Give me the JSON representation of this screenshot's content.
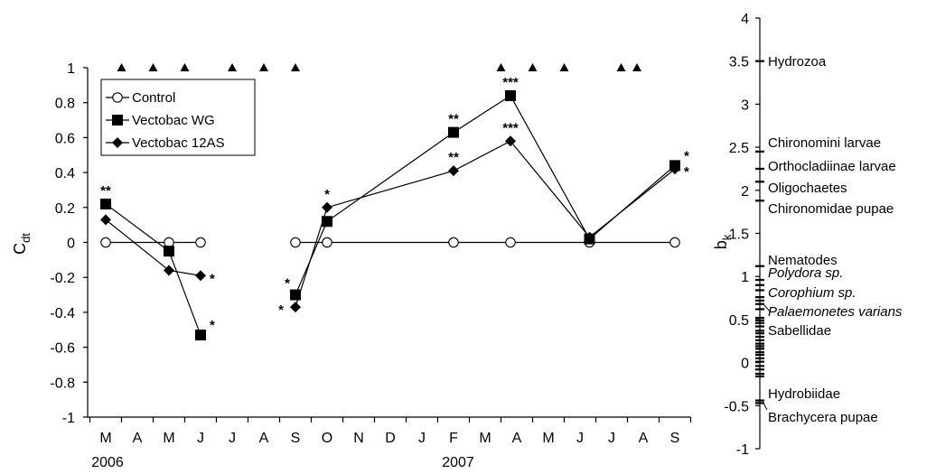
{
  "chart_data": [
    {
      "type": "line",
      "title": "",
      "ylabel": "C",
      "ylabel_sub": "dt",
      "ylim": [
        -1,
        1
      ],
      "y_ticks": [
        "1",
        "0.8",
        "0.6",
        "0.4",
        "0.2",
        "0",
        "-0.2",
        "-0.4",
        "-0.6",
        "-0.8",
        "-1"
      ],
      "month_labels": [
        "M",
        "A",
        "M",
        "J",
        "J",
        "A",
        "S",
        "O",
        "N",
        "D",
        "J",
        "F",
        "M",
        "A",
        "M",
        "J",
        "J",
        "A",
        "S"
      ],
      "year_labels": [
        "2006",
        "2007"
      ],
      "legend_position": "top-left",
      "series": [
        {
          "name": "Control",
          "marker": "circle-open",
          "segments": [
            [
              {
                "x": 0,
                "y": 0
              },
              {
                "x": 2,
                "y": 0
              },
              {
                "x": 3,
                "y": 0
              }
            ],
            [
              {
                "x": 6,
                "y": 0
              },
              {
                "x": 7,
                "y": 0
              },
              {
                "x": 11,
                "y": 0
              },
              {
                "x": 12.8,
                "y": 0
              },
              {
                "x": 15.3,
                "y": 0
              },
              {
                "x": 18,
                "y": 0
              }
            ]
          ]
        },
        {
          "name": "Vectobac WG",
          "marker": "square",
          "segments": [
            [
              {
                "x": 0,
                "y": 0.22,
                "sig": "**"
              },
              {
                "x": 2,
                "y": -0.05
              },
              {
                "x": 3,
                "y": -0.53,
                "sig": "*"
              }
            ],
            [
              {
                "x": 6,
                "y": -0.3,
                "sig": "*"
              },
              {
                "x": 7,
                "y": 0.12
              },
              {
                "x": 11,
                "y": 0.63,
                "sig": "**"
              },
              {
                "x": 12.8,
                "y": 0.84,
                "sig": "***"
              },
              {
                "x": 15.3,
                "y": 0.02
              },
              {
                "x": 18,
                "y": 0.44,
                "sig": "*"
              }
            ]
          ]
        },
        {
          "name": "Vectobac 12AS",
          "marker": "diamond",
          "segments": [
            [
              {
                "x": 0,
                "y": 0.13
              },
              {
                "x": 2,
                "y": -0.16
              },
              {
                "x": 3,
                "y": -0.19,
                "sig": "*"
              }
            ],
            [
              {
                "x": 6,
                "y": -0.37,
                "sig": "*"
              },
              {
                "x": 7,
                "y": 0.2,
                "sig": "*"
              },
              {
                "x": 11,
                "y": 0.41,
                "sig": "**"
              },
              {
                "x": 12.8,
                "y": 0.58,
                "sig": "***"
              },
              {
                "x": 15.3,
                "y": 0.03
              },
              {
                "x": 18,
                "y": 0.42,
                "sig": "*"
              }
            ]
          ]
        }
      ],
      "application_markers_x": [
        0.5,
        1.5,
        2.5,
        4,
        5,
        6,
        12.5,
        13.5,
        14.5,
        16.3,
        16.8
      ]
    },
    {
      "type": "scatter",
      "title": "",
      "ylabel": "b",
      "ylabel_sub": "k",
      "ylim": [
        -1,
        4
      ],
      "y_ticks": [
        "4",
        "3.5",
        "3",
        "2.5",
        "2",
        "1.5",
        "1",
        "0.5",
        "0",
        "-0.5",
        "-1"
      ],
      "labeled_taxa": [
        {
          "name": "Hydrozoa",
          "value": 3.5,
          "italic": false
        },
        {
          "name": "Chironomini larvae",
          "value": 2.45,
          "italic": false
        },
        {
          "name": "Orthocladiinae larvae",
          "value": 2.25,
          "italic": false
        },
        {
          "name": "Oligochaetes",
          "value": 2.1,
          "italic": false
        },
        {
          "name": "Chironomidae pupae",
          "value": 1.88,
          "italic": false
        },
        {
          "name": "Nematodes",
          "value": 1.12,
          "italic": false
        },
        {
          "name": "Polydora sp.",
          "value": 0.96,
          "italic": true
        },
        {
          "name": "Corophium sp.",
          "value": 0.76,
          "italic": true
        },
        {
          "name": "Palaemonetes varians",
          "value": 0.68,
          "italic": true
        },
        {
          "name": "Sabellidae",
          "value": 0.52,
          "italic": false
        },
        {
          "name": "Hydrobiidae",
          "value": -0.44,
          "italic": false
        },
        {
          "name": "Brachycera pupae",
          "value": -0.47,
          "italic": false
        }
      ],
      "unlabeled_values": [
        0.9,
        0.84,
        0.72,
        0.62,
        0.49,
        0.46,
        0.42,
        0.37,
        0.34,
        0.3,
        0.26,
        0.22,
        0.19,
        0.16,
        0.12,
        0.09,
        0.05,
        0.01,
        -0.04,
        -0.08,
        -0.13,
        -0.16
      ]
    }
  ]
}
